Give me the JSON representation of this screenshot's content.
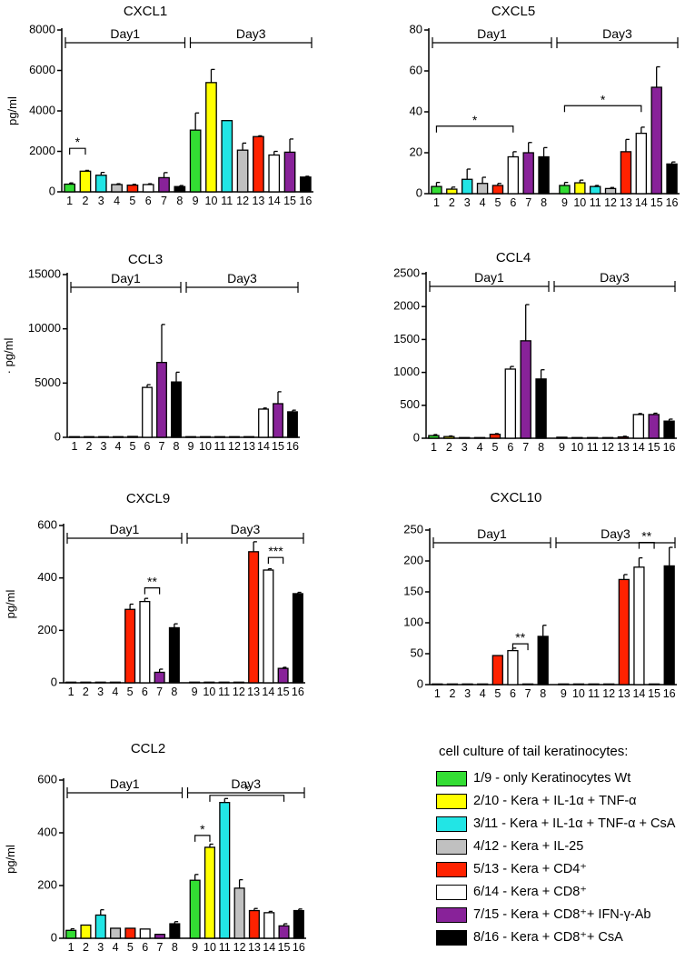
{
  "figure": {
    "legend_title": "cell culture of tail keratinocytes:"
  },
  "legend": [
    {
      "label": "1/9 - only Keratinocytes Wt",
      "color": "#33dd33"
    },
    {
      "label": "2/10 - Kera + IL-1α + TNF-α",
      "color": "#ffff00"
    },
    {
      "label": "3/11 - Kera + IL-1α + TNF-α + CsA",
      "color": "#22e5e5"
    },
    {
      "label": "4/12  - Kera + IL-25",
      "color": "#c0c0c0"
    },
    {
      "label": "5/13 - Kera + CD4⁺",
      "color": "#ff2200"
    },
    {
      "label": "6/14 - Kera + CD8⁺",
      "color": "#ffffff"
    },
    {
      "label": "7/15 - Kera + CD8⁺+ IFN-γ-Ab",
      "color": "#882299"
    },
    {
      "label": "8/16 - Kera + CD8⁺+ CsA",
      "color": "#000000"
    }
  ],
  "chart_data": [
    {
      "type": "bar",
      "title": "CXCL1",
      "ylabel": "pg/ml",
      "ylim": [
        0,
        8000
      ],
      "yticks": [
        0,
        2000,
        4000,
        6000,
        8000
      ],
      "categories": [
        "1",
        "2",
        "3",
        "4",
        "5",
        "6",
        "7",
        "8",
        "9",
        "10",
        "11",
        "12",
        "13",
        "14",
        "15",
        "16"
      ],
      "values": [
        380,
        1020,
        820,
        360,
        330,
        360,
        700,
        260,
        3050,
        5400,
        3520,
        2060,
        2730,
        1820,
        1960,
        730
      ],
      "errors": [
        60,
        40,
        140,
        40,
        40,
        40,
        250,
        50,
        850,
        650,
        0,
        350,
        40,
        180,
        650,
        40
      ],
      "groups": [
        {
          "label": "Day1",
          "from": 1,
          "to": 8
        },
        {
          "label": "Day3",
          "from": 9,
          "to": 16
        }
      ],
      "brackets": [
        {
          "from": 1,
          "to": 2,
          "label": "*",
          "value": 2150
        }
      ]
    },
    {
      "type": "bar",
      "title": "CXCL5",
      "ylabel": "",
      "ylim": [
        0,
        80
      ],
      "yticks": [
        0,
        20,
        40,
        60,
        80
      ],
      "categories": [
        "1",
        "2",
        "3",
        "4",
        "5",
        "6",
        "7",
        "8",
        "9",
        "10",
        "11",
        "12",
        "13",
        "14",
        "15",
        "16"
      ],
      "values": [
        3.5,
        2.2,
        7,
        5,
        4,
        18,
        20,
        18,
        4,
        5.3,
        3.5,
        2.5,
        20.5,
        29.5,
        52,
        14.5
      ],
      "errors": [
        2,
        1,
        5,
        3,
        1,
        2.5,
        5,
        4.5,
        1.5,
        1.3,
        0.5,
        0.5,
        6,
        3,
        10,
        1
      ],
      "groups": [
        {
          "label": "Day1",
          "from": 1,
          "to": 8
        },
        {
          "label": "Day3",
          "from": 9,
          "to": 16
        }
      ],
      "brackets": [
        {
          "from": 1,
          "to": 6,
          "label": "*",
          "value": 33
        },
        {
          "from": 9,
          "to": 14,
          "label": "*",
          "value": 43
        }
      ]
    },
    {
      "type": "bar",
      "title": "CCL3",
      "ylabel": "· pg/ml",
      "ylim": [
        0,
        15000
      ],
      "yticks": [
        0,
        5000,
        10000,
        15000
      ],
      "categories": [
        "1",
        "2",
        "3",
        "4",
        "5",
        "6",
        "7",
        "8",
        "9",
        "10",
        "11",
        "12",
        "13",
        "14",
        "15",
        "16"
      ],
      "values": [
        20,
        20,
        20,
        20,
        80,
        4600,
        6900,
        5100,
        20,
        20,
        20,
        20,
        20,
        2600,
        3100,
        2350
      ],
      "errors": [
        0,
        0,
        0,
        0,
        0,
        250,
        3500,
        900,
        0,
        0,
        0,
        0,
        0,
        100,
        1100,
        150
      ],
      "groups": [
        {
          "label": "Day1",
          "from": 1,
          "to": 8
        },
        {
          "label": "Day3",
          "from": 9,
          "to": 16
        }
      ],
      "brackets": []
    },
    {
      "type": "bar",
      "title": "CCL4",
      "ylabel": "",
      "ylim": [
        0,
        2500
      ],
      "yticks": [
        0,
        500,
        1000,
        1500,
        2000,
        2500
      ],
      "categories": [
        "1",
        "2",
        "3",
        "4",
        "5",
        "6",
        "7",
        "8",
        "9",
        "10",
        "11",
        "12",
        "13",
        "14",
        "15",
        "16"
      ],
      "values": [
        40,
        25,
        10,
        10,
        60,
        1050,
        1480,
        900,
        15,
        10,
        10,
        10,
        20,
        360,
        360,
        260
      ],
      "errors": [
        15,
        10,
        0,
        0,
        10,
        40,
        550,
        140,
        0,
        0,
        0,
        0,
        10,
        15,
        20,
        30
      ],
      "groups": [
        {
          "label": "Day1",
          "from": 1,
          "to": 8
        },
        {
          "label": "Day3",
          "from": 9,
          "to": 16
        }
      ],
      "brackets": []
    },
    {
      "type": "bar",
      "title": "CXCL9",
      "ylabel": "pg/ml",
      "ylim": [
        0,
        600
      ],
      "yticks": [
        0,
        200,
        400,
        600
      ],
      "categories": [
        "1",
        "2",
        "3",
        "4",
        "5",
        "6",
        "7",
        "8",
        "9",
        "10",
        "11",
        "12",
        "13",
        "14",
        "15",
        "16"
      ],
      "values": [
        1,
        1,
        1,
        1,
        280,
        310,
        40,
        210,
        1,
        1,
        1,
        1,
        500,
        430,
        55,
        340
      ],
      "errors": [
        0,
        0,
        0,
        0,
        20,
        12,
        12,
        15,
        0,
        0,
        0,
        0,
        38,
        5,
        4,
        5
      ],
      "groups": [
        {
          "label": "Day1",
          "from": 1,
          "to": 8
        },
        {
          "label": "Day3",
          "from": 9,
          "to": 16
        }
      ],
      "brackets": [
        {
          "from": 6,
          "to": 7,
          "label": "**",
          "value": 362
        },
        {
          "from": 14,
          "to": 15,
          "label": "***",
          "value": 478
        }
      ]
    },
    {
      "type": "bar",
      "title": "CXCL10",
      "ylabel": "",
      "ylim": [
        0,
        250
      ],
      "yticks": [
        0,
        50,
        100,
        150,
        200,
        250
      ],
      "categories": [
        "1",
        "2",
        "3",
        "4",
        "5",
        "6",
        "7",
        "8",
        "9",
        "10",
        "11",
        "12",
        "13",
        "14",
        "15",
        "16"
      ],
      "values": [
        1,
        1,
        1,
        1,
        47,
        55,
        1,
        78,
        1,
        1,
        1,
        1,
        170,
        190,
        1,
        192
      ],
      "errors": [
        0,
        0,
        0,
        0,
        0,
        4,
        0,
        18,
        0,
        0,
        0,
        0,
        8,
        15,
        0,
        30
      ],
      "groups": [
        {
          "label": "Day1",
          "from": 1,
          "to": 8
        },
        {
          "label": "Day3",
          "from": 9,
          "to": 16
        }
      ],
      "brackets": [
        {
          "from": 6,
          "to": 7,
          "label": "**",
          "value": 66
        },
        {
          "from": 14,
          "to": 15,
          "label": "**",
          "value": 230
        }
      ]
    },
    {
      "type": "bar",
      "title": "CCL2",
      "ylabel": "pg/ml",
      "ylim": [
        0,
        600
      ],
      "yticks": [
        0,
        200,
        400,
        600
      ],
      "categories": [
        "1",
        "2",
        "3",
        "4",
        "5",
        "6",
        "7",
        "8",
        "9",
        "10",
        "11",
        "12",
        "13",
        "14",
        "15",
        "16"
      ],
      "values": [
        30,
        50,
        88,
        38,
        38,
        35,
        15,
        55,
        220,
        345,
        515,
        190,
        105,
        97,
        47,
        105
      ],
      "errors": [
        6,
        0,
        20,
        0,
        0,
        0,
        0,
        8,
        22,
        12,
        15,
        32,
        8,
        5,
        8,
        6
      ],
      "groups": [
        {
          "label": "Day1",
          "from": 1,
          "to": 8
        },
        {
          "label": "Day3",
          "from": 9,
          "to": 16
        }
      ],
      "brackets": [
        {
          "from": 9,
          "to": 10,
          "label": "*",
          "value": 390
        },
        {
          "from": 10,
          "to": 15,
          "label": "*",
          "value": 542
        }
      ]
    }
  ]
}
